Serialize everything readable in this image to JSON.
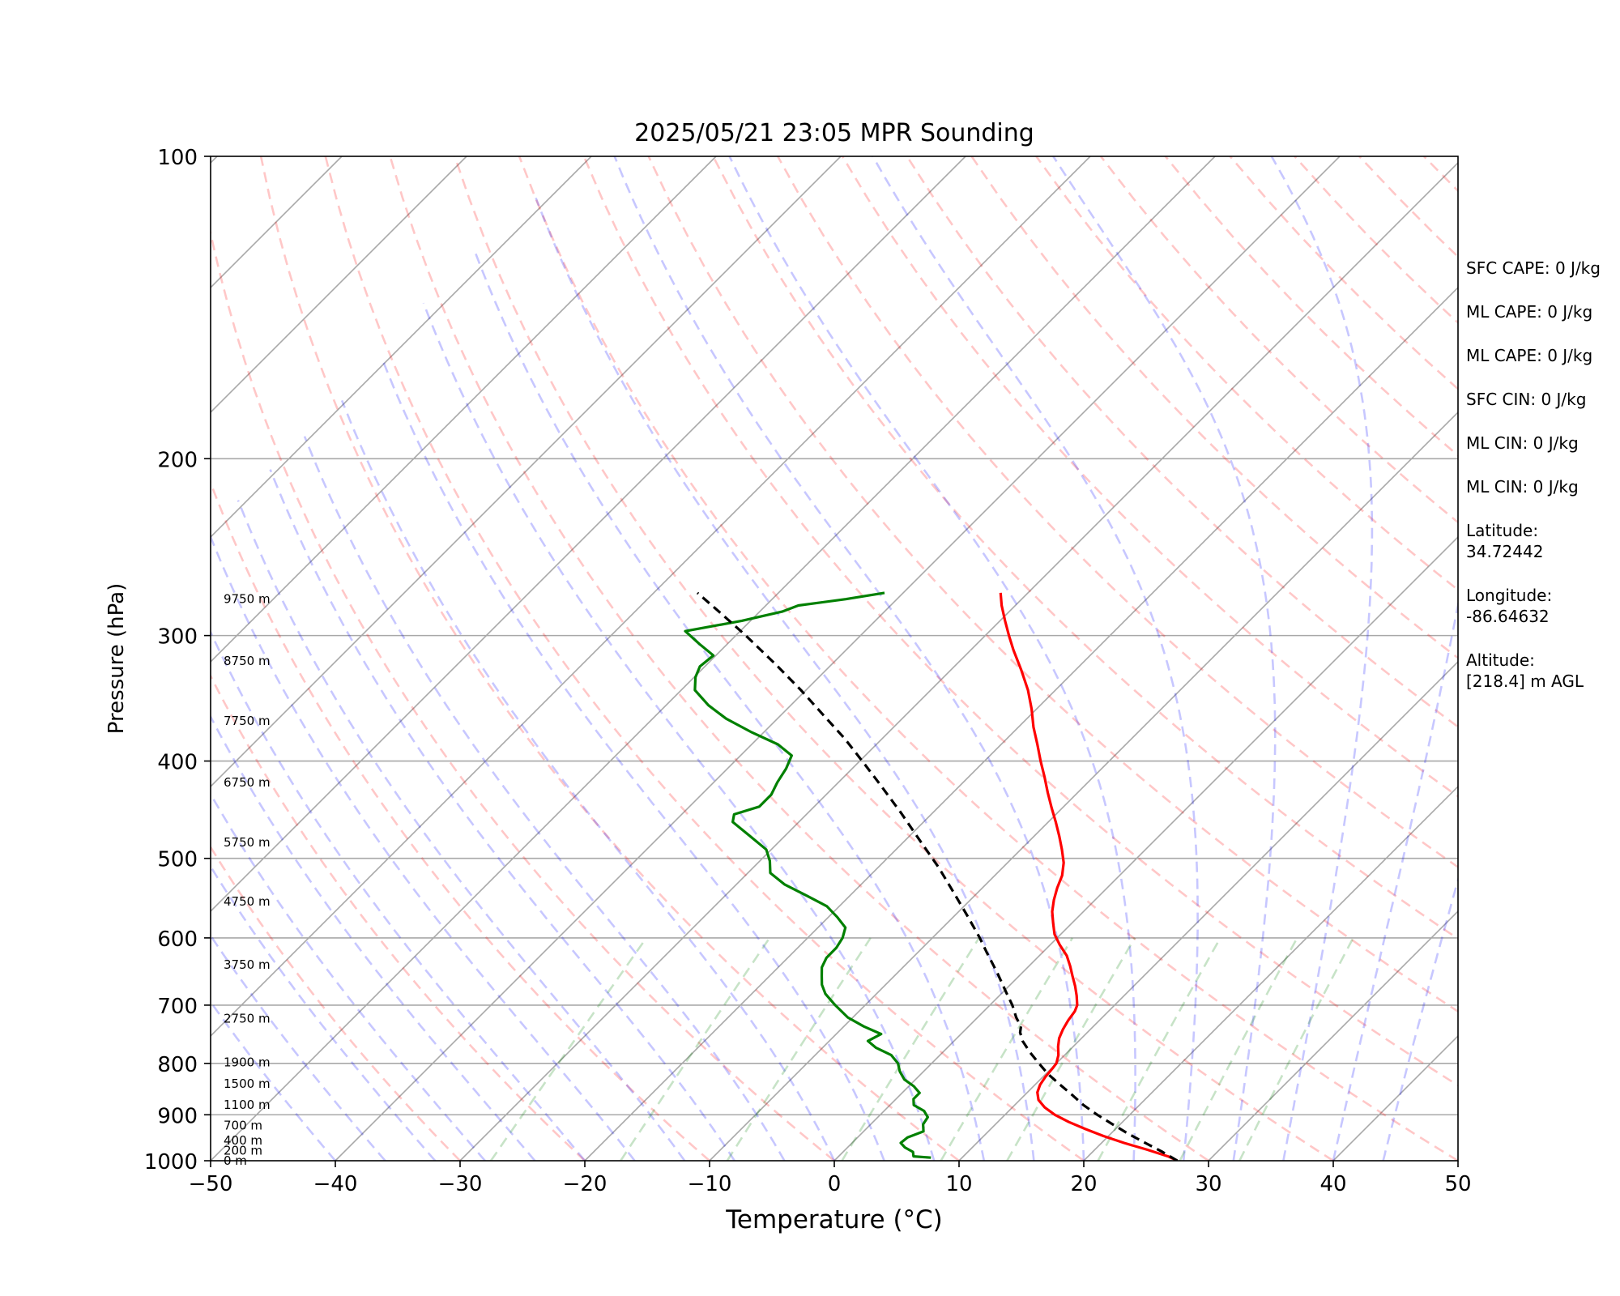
{
  "chart_data": {
    "type": "line",
    "title": "2025/05/21 23:05 MPR Sounding",
    "xlabel": "Temperature (°C)",
    "ylabel": "Pressure (hPa)",
    "xlim": [
      -50,
      50
    ],
    "ylim": [
      1000,
      100
    ],
    "y_scale": "log",
    "skew": "skew-T (isotherms tilted 45°)",
    "x_ticks": [
      "−50",
      "−40",
      "−30",
      "−20",
      "−10",
      "0",
      "10",
      "20",
      "30",
      "40",
      "50"
    ],
    "y_ticks": [
      {
        "p": 100,
        "label": "100"
      },
      {
        "p": 200,
        "label": "200"
      },
      {
        "p": 300,
        "label": "300"
      },
      {
        "p": 400,
        "label": "400"
      },
      {
        "p": 500,
        "label": "500"
      },
      {
        "p": 600,
        "label": "600"
      },
      {
        "p": 700,
        "label": "700"
      },
      {
        "p": 800,
        "label": "800"
      },
      {
        "p": 900,
        "label": "900"
      },
      {
        "p": 1000,
        "label": "1000"
      }
    ],
    "height_labels": [
      {
        "p": 1000,
        "label": "0 m"
      },
      {
        "p": 977,
        "label": "200 m"
      },
      {
        "p": 955,
        "label": "400 m"
      },
      {
        "p": 922,
        "label": "700 m"
      },
      {
        "p": 880,
        "label": "1100 m"
      },
      {
        "p": 838,
        "label": "1500 m"
      },
      {
        "p": 798,
        "label": "1900 m"
      },
      {
        "p": 722,
        "label": "2750 m"
      },
      {
        "p": 638,
        "label": "3750 m"
      },
      {
        "p": 552,
        "label": "4750 m"
      },
      {
        "p": 482,
        "label": "5750 m"
      },
      {
        "p": 420,
        "label": "6750 m"
      },
      {
        "p": 365,
        "label": "7750 m"
      },
      {
        "p": 318,
        "label": "8750 m"
      },
      {
        "p": 276,
        "label": "9750 m"
      }
    ],
    "series": [
      {
        "name": "",
        "role": "temperature",
        "color": "#ff0000",
        "points": [
          [
            1000,
            27.5
          ],
          [
            990,
            26.4
          ],
          [
            975,
            24.2
          ],
          [
            960,
            21.8
          ],
          [
            945,
            19.6
          ],
          [
            930,
            17.6
          ],
          [
            915,
            15.7
          ],
          [
            900,
            14.0
          ],
          [
            885,
            12.6
          ],
          [
            870,
            11.5
          ],
          [
            855,
            10.8
          ],
          [
            840,
            10.4
          ],
          [
            825,
            10.2
          ],
          [
            810,
            10.1
          ],
          [
            800,
            10.0
          ],
          [
            785,
            9.5
          ],
          [
            770,
            8.8
          ],
          [
            755,
            8.2
          ],
          [
            740,
            7.8
          ],
          [
            725,
            7.5
          ],
          [
            710,
            7.3
          ],
          [
            700,
            7.0
          ],
          [
            685,
            6.2
          ],
          [
            670,
            5.3
          ],
          [
            655,
            4.3
          ],
          [
            640,
            3.3
          ],
          [
            625,
            2.2
          ],
          [
            610,
            0.8
          ],
          [
            595,
            -0.5
          ],
          [
            580,
            -1.5
          ],
          [
            565,
            -2.5
          ],
          [
            550,
            -3.3
          ],
          [
            535,
            -4.0
          ],
          [
            520,
            -4.6
          ],
          [
            505,
            -5.5
          ],
          [
            490,
            -6.7
          ],
          [
            475,
            -8.0
          ],
          [
            460,
            -9.4
          ],
          [
            445,
            -10.9
          ],
          [
            430,
            -12.4
          ],
          [
            415,
            -13.9
          ],
          [
            400,
            -15.5
          ],
          [
            385,
            -17.1
          ],
          [
            370,
            -18.8
          ],
          [
            355,
            -20.4
          ],
          [
            340,
            -22.2
          ],
          [
            325,
            -24.3
          ],
          [
            310,
            -26.6
          ],
          [
            300,
            -28.1
          ],
          [
            290,
            -29.6
          ],
          [
            280,
            -31.1
          ],
          [
            272,
            -32.2
          ]
        ]
      },
      {
        "name": "",
        "role": "dewpoint",
        "color": "#008000",
        "points": [
          [
            993,
            7.5
          ],
          [
            990,
            6.0
          ],
          [
            980,
            5.6
          ],
          [
            970,
            4.6
          ],
          [
            960,
            3.9
          ],
          [
            948,
            4.0
          ],
          [
            935,
            4.8
          ],
          [
            920,
            4.2
          ],
          [
            905,
            4.0
          ],
          [
            892,
            3.2
          ],
          [
            880,
            1.9
          ],
          [
            868,
            1.4
          ],
          [
            856,
            1.4
          ],
          [
            843,
            0.4
          ],
          [
            830,
            -0.9
          ],
          [
            815,
            -1.9
          ],
          [
            800,
            -2.7
          ],
          [
            785,
            -3.9
          ],
          [
            772,
            -5.7
          ],
          [
            760,
            -6.9
          ],
          [
            748,
            -6.4
          ],
          [
            735,
            -8.4
          ],
          [
            720,
            -10.4
          ],
          [
            700,
            -12.4
          ],
          [
            682,
            -14.1
          ],
          [
            668,
            -15.1
          ],
          [
            655,
            -15.8
          ],
          [
            642,
            -16.5
          ],
          [
            628,
            -16.9
          ],
          [
            614,
            -16.9
          ],
          [
            600,
            -17.2
          ],
          [
            586,
            -17.8
          ],
          [
            572,
            -19.3
          ],
          [
            558,
            -21.0
          ],
          [
            545,
            -23.4
          ],
          [
            531,
            -26.1
          ],
          [
            517,
            -28.2
          ],
          [
            503,
            -29.2
          ],
          [
            490,
            -30.4
          ],
          [
            475,
            -32.8
          ],
          [
            460,
            -35.3
          ],
          [
            452,
            -35.8
          ],
          [
            444,
            -34.4
          ],
          [
            432,
            -34.4
          ],
          [
            420,
            -34.9
          ],
          [
            407,
            -35.3
          ],
          [
            395,
            -35.9
          ],
          [
            385,
            -37.9
          ],
          [
            374,
            -41.1
          ],
          [
            363,
            -44.1
          ],
          [
            352,
            -46.6
          ],
          [
            340,
            -48.9
          ],
          [
            330,
            -49.9
          ],
          [
            322,
            -50.4
          ],
          [
            314,
            -50.2
          ],
          [
            306,
            -52.2
          ],
          [
            297,
            -54.4
          ],
          [
            290,
            -50.7
          ],
          [
            284,
            -48.2
          ],
          [
            280,
            -47.4
          ],
          [
            276,
            -44.1
          ],
          [
            272,
            -41.5
          ]
        ]
      },
      {
        "name": "",
        "role": "parcel",
        "color": "#000000",
        "dashed": true,
        "points": [
          [
            1000,
            27.5
          ],
          [
            980,
            25.6
          ],
          [
            960,
            23.5
          ],
          [
            940,
            21.4
          ],
          [
            920,
            19.4
          ],
          [
            900,
            17.4
          ],
          [
            880,
            15.5
          ],
          [
            860,
            13.8
          ],
          [
            840,
            12.0
          ],
          [
            820,
            10.2
          ],
          [
            800,
            8.6
          ],
          [
            780,
            7.0
          ],
          [
            760,
            5.5
          ],
          [
            745,
            4.6
          ],
          [
            735,
            4.2
          ],
          [
            720,
            3.1
          ],
          [
            700,
            1.8
          ],
          [
            680,
            0.3
          ],
          [
            650,
            -2.0
          ],
          [
            620,
            -4.5
          ],
          [
            600,
            -6.2
          ],
          [
            570,
            -9.0
          ],
          [
            540,
            -12.0
          ],
          [
            510,
            -15.2
          ],
          [
            480,
            -18.8
          ],
          [
            450,
            -22.6
          ],
          [
            420,
            -26.8
          ],
          [
            400,
            -29.8
          ],
          [
            380,
            -33.0
          ],
          [
            360,
            -36.6
          ],
          [
            340,
            -40.4
          ],
          [
            320,
            -44.6
          ],
          [
            300,
            -49.2
          ],
          [
            285,
            -53.0
          ],
          [
            272,
            -56.5
          ]
        ]
      }
    ],
    "legend": "none",
    "grid": true
  },
  "stats": [
    {
      "id": "sfc-cape",
      "text": "SFC CAPE: 0 J/kg"
    },
    {
      "id": "ml-cape-1",
      "text": "ML CAPE: 0 J/kg"
    },
    {
      "id": "ml-cape-2",
      "text": "ML CAPE: 0 J/kg"
    },
    {
      "id": "sfc-cin",
      "text": "SFC CIN: 0 J/kg"
    },
    {
      "id": "ml-cin-1",
      "text": "ML CIN: 0 J/kg"
    },
    {
      "id": "ml-cin-2",
      "text": "ML CIN: 0 J/kg"
    },
    {
      "id": "latitude",
      "text": "Latitude:\n34.72442"
    },
    {
      "id": "longitude",
      "text": "Longitude:\n-86.64632"
    },
    {
      "id": "altitude",
      "text": "Altitude:\n[218.4] m AGL"
    }
  ]
}
